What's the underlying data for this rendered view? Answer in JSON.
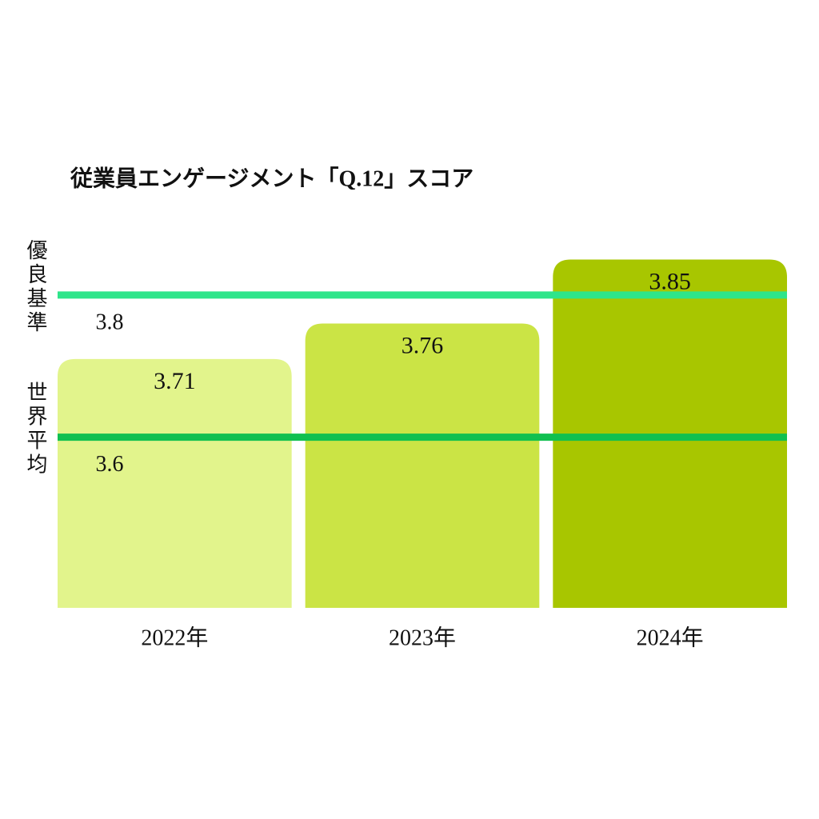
{
  "chart_data": {
    "type": "bar",
    "title": "従業員エンゲージメント「Q.12」スコア",
    "categories": [
      "2022年",
      "2023年",
      "2024年"
    ],
    "values": [
      3.71,
      3.76,
      3.85
    ],
    "colors": [
      "#e2f48c",
      "#cbe445",
      "#a8c600"
    ],
    "ylim": [
      3.36,
      3.9
    ],
    "reference_lines": [
      {
        "label": "優良基準",
        "value": 3.8,
        "color": "#2ee58a"
      },
      {
        "label": "世界平均",
        "value": 3.6,
        "color": "#10c050"
      }
    ]
  }
}
